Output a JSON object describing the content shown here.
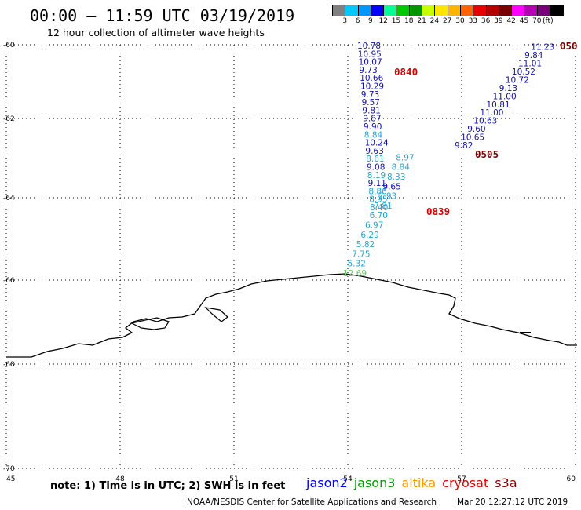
{
  "title": "00:00 – 11:59 UTC 03/19/2019",
  "subtitle": "12 hour collection of altimeter wave heights",
  "colorbar": {
    "colors": [
      "#808080",
      "#00c8ff",
      "#0096ff",
      "#0000ff",
      "#00ff96",
      "#00c800",
      "#009600",
      "#c8ff00",
      "#ffe600",
      "#ffb400",
      "#ff6400",
      "#e60000",
      "#b40000",
      "#780000",
      "#ff00ff",
      "#b400b4",
      "#780078",
      "#000000"
    ],
    "labels": [
      "3",
      "6",
      "9",
      "12",
      "15",
      "18",
      "21",
      "24",
      "27",
      "30",
      "33",
      "36",
      "39",
      "42",
      "45",
      "70"
    ],
    "unit": "(ft)"
  },
  "axes": {
    "lon_labels": [
      "45",
      "48",
      "51",
      "54",
      "57",
      "60"
    ],
    "lat_labels": [
      "-60",
      "-62",
      "-64",
      "-66",
      "-68",
      "-70"
    ]
  },
  "tracks": [
    {
      "name": "track-0840",
      "time_label": "0840",
      "label_color": "#e00000",
      "points": [
        {
          "v": "10.78",
          "c": "#1010b0"
        },
        {
          "v": "10.95",
          "c": "#1010b0"
        },
        {
          "v": "10.07",
          "c": "#1010b0"
        },
        {
          "v": "9.73",
          "c": "#1010b0"
        },
        {
          "v": "10.66",
          "c": "#1010b0"
        },
        {
          "v": "10.29",
          "c": "#1010b0"
        },
        {
          "v": "9.73",
          "c": "#1010b0"
        },
        {
          "v": "9.57",
          "c": "#1010b0"
        },
        {
          "v": "9.81",
          "c": "#1010b0"
        },
        {
          "v": "9.87",
          "c": "#1010b0"
        },
        {
          "v": "9.90",
          "c": "#1010b0"
        },
        {
          "v": "8.84",
          "c": "#20a8d8"
        },
        {
          "v": "10.24",
          "c": "#1010b0"
        },
        {
          "v": "9.63",
          "c": "#1010b0"
        },
        {
          "v": "8.61",
          "c": "#20a8d8"
        },
        {
          "v": "9.08",
          "c": "#1010b0"
        },
        {
          "v": "8.19",
          "c": "#20a8d8"
        },
        {
          "v": "9.11",
          "c": "#1010b0"
        },
        {
          "v": "8.86",
          "c": "#20a8d8"
        },
        {
          "v": "8.95",
          "c": "#20a8d8"
        },
        {
          "v": "8.40",
          "c": "#20a8d8"
        }
      ]
    },
    {
      "name": "track-0839",
      "time_label": "0839",
      "label_color": "#e00000",
      "points": [
        {
          "v": "12.69",
          "c": "#60d060"
        },
        {
          "v": "5.32",
          "c": "#20a8d8"
        },
        {
          "v": "7.75",
          "c": "#20a8d8"
        },
        {
          "v": "5.82",
          "c": "#20a8d8"
        },
        {
          "v": "6.29",
          "c": "#20a8d8"
        },
        {
          "v": "6.97",
          "c": "#20a8d8"
        },
        {
          "v": "6.70",
          "c": "#20a8d8"
        },
        {
          "v": "7.81",
          "c": "#20a8d8"
        },
        {
          "v": "7.93",
          "c": "#20a8d8"
        },
        {
          "v": "9.65",
          "c": "#1010b0"
        },
        {
          "v": "8.33",
          "c": "#20a8d8"
        },
        {
          "v": "8.84",
          "c": "#20a8d8"
        },
        {
          "v": "8.97",
          "c": "#20a8d8"
        }
      ]
    },
    {
      "name": "track-0505",
      "time_label": "0505",
      "label_color": "#800000",
      "points": [
        {
          "v": "9.82",
          "c": "#1010b0"
        },
        {
          "v": "10.65",
          "c": "#1010b0"
        },
        {
          "v": "9.60",
          "c": "#1010b0"
        },
        {
          "v": "10.63",
          "c": "#1010b0"
        },
        {
          "v": "11.00",
          "c": "#1010b0"
        },
        {
          "v": "10.81",
          "c": "#1010b0"
        },
        {
          "v": "11.00",
          "c": "#1010b0"
        },
        {
          "v": "9.13",
          "c": "#1010b0"
        },
        {
          "v": "10.72",
          "c": "#1010b0"
        },
        {
          "v": "10.52",
          "c": "#1010b0"
        },
        {
          "v": "11.01",
          "c": "#1010b0"
        },
        {
          "v": "9.84",
          "c": "#1010b0"
        },
        {
          "v": "11.23",
          "c": "#1010b0"
        }
      ]
    },
    {
      "name": "track-050",
      "time_label": "050",
      "label_color": "#800000",
      "points": []
    }
  ],
  "note": "note: 1) Time is in UTC; 2) SWH is in feet",
  "legend": [
    {
      "label": "jason2",
      "color": "#0000ff"
    },
    {
      "label": "jason3",
      "color": "#00a000"
    },
    {
      "label": "altika",
      "color": "#ff9900"
    },
    {
      "label": "cryosat",
      "color": "#e00000"
    },
    {
      "label": "s3a",
      "color": "#800000"
    }
  ],
  "credit": "NOAA/NESDIS Center for Satellite Applications and Research",
  "timestamp": "Mar 20 12:27:12 UTC 2019"
}
